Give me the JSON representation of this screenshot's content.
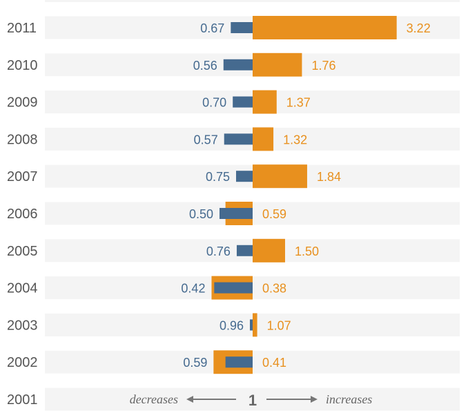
{
  "chart_data": {
    "type": "bar",
    "title": "",
    "baseline": 1,
    "baseline_label": "1",
    "direction_labels": {
      "left": "decreases",
      "right": "increases"
    },
    "years": [
      "2011",
      "2010",
      "2009",
      "2008",
      "2007",
      "2006",
      "2005",
      "2004",
      "2003",
      "2002",
      "2001"
    ],
    "series": [
      {
        "name": "orange",
        "color": "#e8901e",
        "values": [
          3.22,
          1.76,
          1.37,
          1.32,
          1.84,
          0.59,
          1.5,
          0.38,
          1.07,
          0.41,
          null
        ],
        "labels": [
          "3.22",
          "1.76",
          "1.37",
          "1.32",
          "1.84",
          "0.59",
          "1.50",
          "0.38",
          "1.07",
          "0.41",
          ""
        ]
      },
      {
        "name": "blue",
        "color": "#456a8f",
        "values": [
          0.67,
          0.56,
          0.7,
          0.57,
          0.75,
          0.5,
          0.76,
          0.42,
          0.96,
          0.59,
          null
        ],
        "labels": [
          "0.67",
          "0.56",
          "0.70",
          "0.57",
          "0.75",
          "0.50",
          "0.76",
          "0.42",
          "0.96",
          "0.59",
          ""
        ]
      }
    ]
  },
  "colors": {
    "orange": "#e8901e",
    "blue": "#456a8f",
    "row_band": "#f4f4f4",
    "year_text": "#555555",
    "direction_text": "#666666",
    "arrow": "#777777"
  }
}
